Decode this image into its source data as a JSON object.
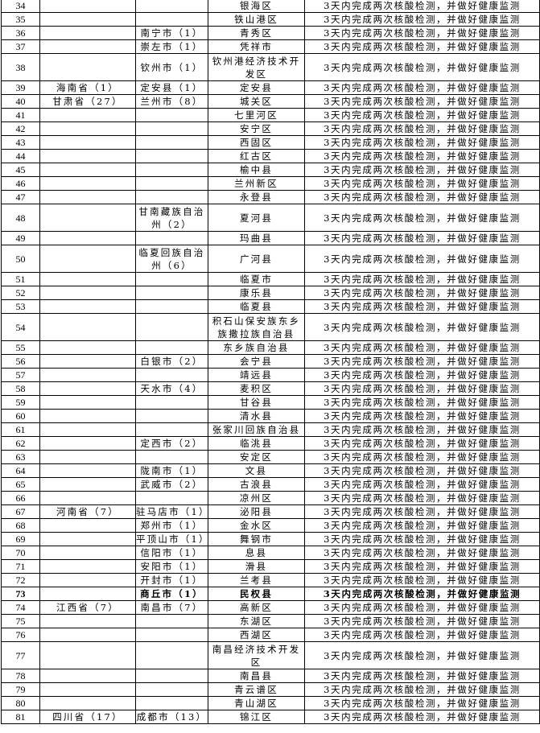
{
  "requirement": "3天内完成两次核酸检测，并做好健康监测",
  "rows": [
    {
      "no": "34",
      "province": "",
      "city": "",
      "district": "银海区"
    },
    {
      "no": "35",
      "province": "",
      "city": "",
      "district": "铁山港区"
    },
    {
      "no": "36",
      "province": "",
      "city": "南宁市（1）",
      "district": "青秀区"
    },
    {
      "no": "37",
      "province": "",
      "city": "崇左市（1）",
      "district": "凭祥市"
    },
    {
      "no": "38",
      "province": "",
      "city": "钦州市（1）",
      "district": "钦州港经济技术开发区",
      "tall": true
    },
    {
      "no": "39",
      "province": "海南省（1）",
      "city": "定安县（1）",
      "district": "定安县"
    },
    {
      "no": "40",
      "province": "甘肃省（27）",
      "city": "兰州市（8）",
      "district": "城关区"
    },
    {
      "no": "41",
      "province": "",
      "city": "",
      "district": "七里河区"
    },
    {
      "no": "42",
      "province": "",
      "city": "",
      "district": "安宁区"
    },
    {
      "no": "43",
      "province": "",
      "city": "",
      "district": "西固区"
    },
    {
      "no": "44",
      "province": "",
      "city": "",
      "district": "红古区"
    },
    {
      "no": "45",
      "province": "",
      "city": "",
      "district": "榆中县"
    },
    {
      "no": "46",
      "province": "",
      "city": "",
      "district": "兰州新区"
    },
    {
      "no": "47",
      "province": "",
      "city": "",
      "district": "永登县"
    },
    {
      "no": "48",
      "province": "",
      "city": "甘南藏族自治州（2）",
      "district": "夏河县",
      "tall": true
    },
    {
      "no": "49",
      "province": "",
      "city": "",
      "district": "玛曲县"
    },
    {
      "no": "50",
      "province": "",
      "city": "临夏回族自治州（6）",
      "district": "广河县",
      "tall": true
    },
    {
      "no": "51",
      "province": "",
      "city": "",
      "district": "临夏市"
    },
    {
      "no": "52",
      "province": "",
      "city": "",
      "district": "康乐县"
    },
    {
      "no": "53",
      "province": "",
      "city": "",
      "district": "临夏县"
    },
    {
      "no": "54",
      "province": "",
      "city": "",
      "district": "积石山保安族东乡族撒拉族自治县",
      "tall": true
    },
    {
      "no": "55",
      "province": "",
      "city": "",
      "district": "东乡族自治县"
    },
    {
      "no": "56",
      "province": "",
      "city": "白银市（2）",
      "district": "会宁县"
    },
    {
      "no": "57",
      "province": "",
      "city": "",
      "district": "靖远县"
    },
    {
      "no": "58",
      "province": "",
      "city": "天水市（4）",
      "district": "麦积区"
    },
    {
      "no": "59",
      "province": "",
      "city": "",
      "district": "甘谷县"
    },
    {
      "no": "60",
      "province": "",
      "city": "",
      "district": "清水县"
    },
    {
      "no": "61",
      "province": "",
      "city": "",
      "district": "张家川回族自治县"
    },
    {
      "no": "62",
      "province": "",
      "city": "定西市（2）",
      "district": "临洮县"
    },
    {
      "no": "63",
      "province": "",
      "city": "",
      "district": "安定区"
    },
    {
      "no": "64",
      "province": "",
      "city": "陇南市（1）",
      "district": "文县"
    },
    {
      "no": "65",
      "province": "",
      "city": "武威市（2）",
      "district": "古浪县"
    },
    {
      "no": "66",
      "province": "",
      "city": "",
      "district": "凉州区"
    },
    {
      "no": "67",
      "province": "河南省（7）",
      "city": "驻马店市（1）",
      "district": "泌阳县"
    },
    {
      "no": "68",
      "province": "",
      "city": "郑州市（1）",
      "district": "金水区"
    },
    {
      "no": "69",
      "province": "",
      "city": "平顶山市（1）",
      "district": "舞钢市"
    },
    {
      "no": "70",
      "province": "",
      "city": "信阳市（1）",
      "district": "息县"
    },
    {
      "no": "71",
      "province": "",
      "city": "安阳市（1）",
      "district": "滑县"
    },
    {
      "no": "72",
      "province": "",
      "city": "开封市（1）",
      "district": "兰考县"
    },
    {
      "no": "73",
      "province": "",
      "city": "商丘市（1）",
      "district": "民权县",
      "bold": true
    },
    {
      "no": "74",
      "province": "江西省（7）",
      "city": "南昌市（7）",
      "district": "高新区"
    },
    {
      "no": "75",
      "province": "",
      "city": "",
      "district": "东湖区"
    },
    {
      "no": "76",
      "province": "",
      "city": "",
      "district": "西湖区"
    },
    {
      "no": "77",
      "province": "",
      "city": "",
      "district": "南昌经济技术开发区",
      "tall": true
    },
    {
      "no": "78",
      "province": "",
      "city": "",
      "district": "南昌县"
    },
    {
      "no": "79",
      "province": "",
      "city": "",
      "district": "青云谱区"
    },
    {
      "no": "80",
      "province": "",
      "city": "",
      "district": "青山湖区"
    },
    {
      "no": "81",
      "province": "四川省（17）",
      "city": "成都市（13）",
      "district": "锦江区"
    }
  ]
}
